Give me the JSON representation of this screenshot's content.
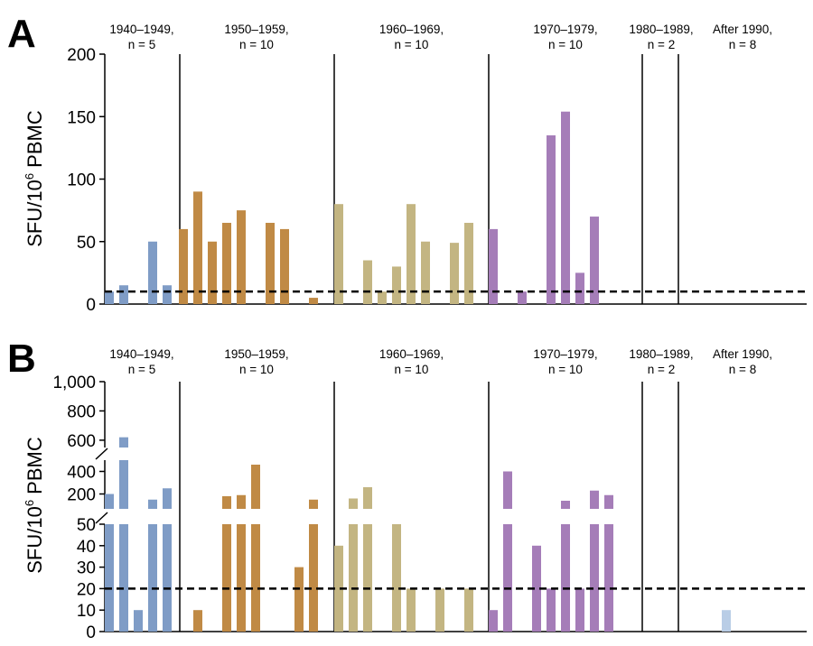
{
  "chart_data": [
    {
      "type": "bar",
      "panel": "A",
      "ylabel": {
        "main": "SFU/10",
        "sup": "6",
        "tail": " PBMC"
      },
      "ylim": [
        0,
        200
      ],
      "yticks": [
        0,
        50,
        100,
        150,
        200
      ],
      "threshold": 10,
      "groups": [
        {
          "label1": "1940–1949,",
          "label2": "n = 5",
          "color": "#7f9cc6",
          "values": [
            10,
            15,
            null,
            50,
            15
          ]
        },
        {
          "label1": "1950–1959,",
          "label2": "n = 10",
          "color": "#c08a45",
          "values": [
            60,
            90,
            50,
            65,
            75,
            null,
            65,
            60,
            null,
            5
          ]
        },
        {
          "label1": "1960–1969,",
          "label2": "n = 10",
          "color": "#c3b582",
          "values": [
            80,
            null,
            35,
            10,
            30,
            80,
            50,
            null,
            49,
            65
          ]
        },
        {
          "label1": "1970–1979,",
          "label2": "n = 10",
          "color": "#a57db8",
          "values": [
            60,
            null,
            10,
            null,
            135,
            154,
            25,
            70,
            null,
            null
          ]
        },
        {
          "label1": "1980–1989,",
          "label2": "n = 2",
          "color": "#b9cde6",
          "values": [
            null,
            null
          ]
        },
        {
          "label1": "After 1990,",
          "label2": "n = 8",
          "color": "#b9cde6",
          "values": [
            null,
            null,
            null,
            null,
            null,
            null,
            null,
            null
          ]
        }
      ]
    },
    {
      "type": "bar",
      "panel": "B",
      "ylabel": {
        "main": "SFU/10",
        "sup": "6",
        "tail": " PBMC"
      },
      "axis_breaks": true,
      "yticks_low": [
        0,
        10,
        20,
        30,
        40,
        50
      ],
      "yticks_mid": [
        "200",
        "400"
      ],
      "yticks_high": [
        "600",
        "800",
        "1,000"
      ],
      "threshold": 20,
      "groups": [
        {
          "label1": "1940–1949,",
          "label2": "n = 5",
          "color": "#7f9cc6",
          "values": [
            200,
            620,
            10,
            150,
            250
          ]
        },
        {
          "label1": "1950–1959,",
          "label2": "n = 10",
          "color": "#c08a45",
          "values": [
            null,
            10,
            null,
            180,
            190,
            460,
            null,
            null,
            30,
            150
          ]
        },
        {
          "label1": "1960–1969,",
          "label2": "n = 10",
          "color": "#c3b582",
          "values": [
            40,
            160,
            260,
            null,
            50,
            20,
            null,
            20,
            null,
            20
          ]
        },
        {
          "label1": "1970–1979,",
          "label2": "n = 10",
          "color": "#a57db8",
          "values": [
            10,
            400,
            null,
            40,
            20,
            140,
            20,
            230,
            190,
            null
          ]
        },
        {
          "label1": "1980–1989,",
          "label2": "n = 2",
          "color": "#b9cde6",
          "values": [
            null,
            null
          ]
        },
        {
          "label1": "After 1990,",
          "label2": "n = 8",
          "color": "#b9cde6",
          "values": [
            null,
            null,
            null,
            10,
            null,
            null,
            null,
            null
          ]
        }
      ]
    }
  ]
}
